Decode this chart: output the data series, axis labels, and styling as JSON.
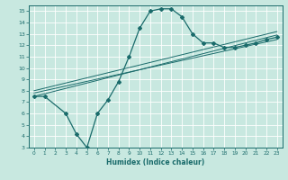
{
  "xlabel": "Humidex (Indice chaleur)",
  "bg_color": "#c8e8e0",
  "grid_color": "#ffffff",
  "line_color": "#1a6b6b",
  "xlim": [
    -0.5,
    23.5
  ],
  "ylim": [
    3,
    15.5
  ],
  "xticks": [
    0,
    1,
    2,
    3,
    4,
    5,
    6,
    7,
    8,
    9,
    10,
    11,
    12,
    13,
    14,
    15,
    16,
    17,
    18,
    19,
    20,
    21,
    22,
    23
  ],
  "yticks": [
    3,
    4,
    5,
    6,
    7,
    8,
    9,
    10,
    11,
    12,
    13,
    14,
    15
  ],
  "main_line": {
    "x": [
      0,
      1,
      3,
      4,
      5,
      6,
      7,
      8,
      9,
      10,
      11,
      12,
      13,
      14,
      15,
      16,
      17,
      18,
      19,
      20,
      21,
      22,
      23
    ],
    "y": [
      7.5,
      7.5,
      6.0,
      4.2,
      3.0,
      6.0,
      7.2,
      8.8,
      11.0,
      13.5,
      15.0,
      15.2,
      15.2,
      14.5,
      13.0,
      12.2,
      12.2,
      11.8,
      11.8,
      12.0,
      12.2,
      12.5,
      12.7
    ]
  },
  "straight_lines": [
    {
      "x": [
        0,
        23
      ],
      "y": [
        7.5,
        12.9
      ]
    },
    {
      "x": [
        0,
        23
      ],
      "y": [
        7.8,
        12.5
      ]
    },
    {
      "x": [
        0,
        23
      ],
      "y": [
        8.0,
        13.2
      ]
    }
  ]
}
